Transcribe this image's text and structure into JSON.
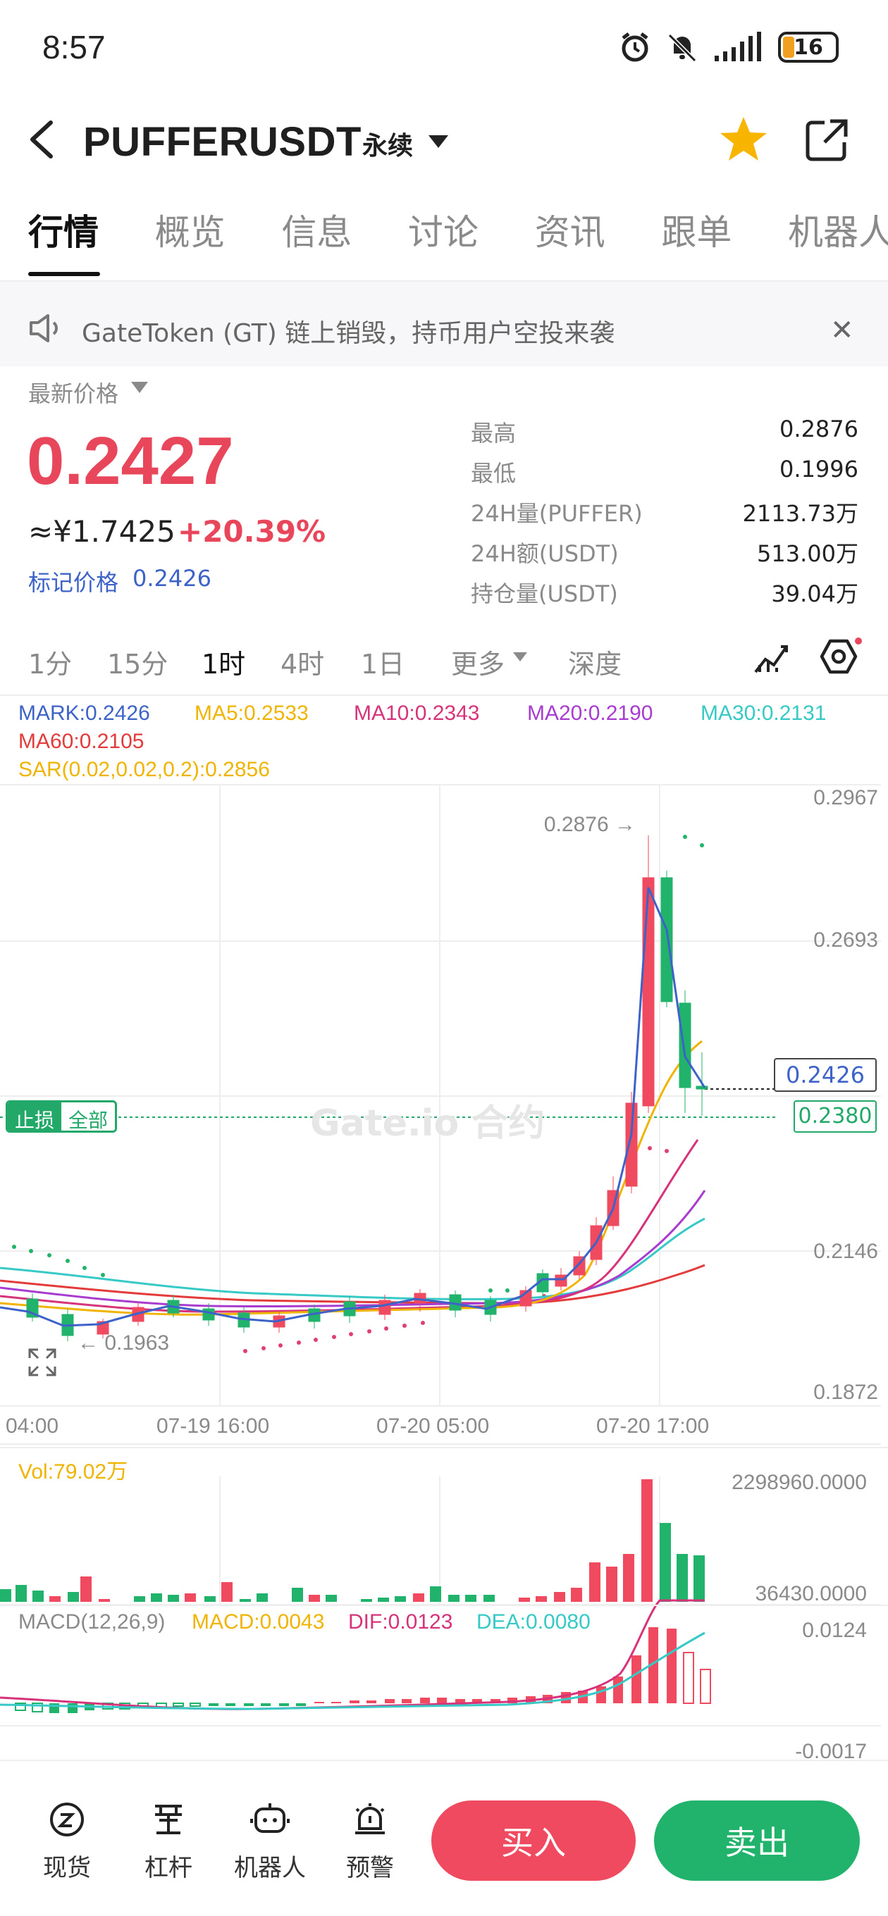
{
  "status": {
    "time": "8:57",
    "battery": "16"
  },
  "header": {
    "pair": "PUFFERUSDT",
    "contract_type": "永续"
  },
  "tabs": [
    "行情",
    "概览",
    "信息",
    "讨论",
    "资讯",
    "跟单",
    "机器人"
  ],
  "announcement": {
    "text": "GateToken (GT) 链上销毁，持币用户空投来袭"
  },
  "price": {
    "label": "最新价格",
    "last": "0.2427",
    "cny": "≈¥1.7425",
    "change": "+20.39%",
    "mark_label": "标记价格",
    "mark_value": "0.2426"
  },
  "stats": [
    {
      "label": "最高",
      "value": "0.2876"
    },
    {
      "label": "最低",
      "value": "0.1996"
    },
    {
      "label": "24H量(PUFFER)",
      "value": "2113.73万"
    },
    {
      "label": "24H额(USDT)",
      "value": "513.00万"
    },
    {
      "label": "持仓量(USDT)",
      "value": "39.04万"
    }
  ],
  "intervals": [
    "1分",
    "15分",
    "1时",
    "4时",
    "1日",
    "更多",
    "深度"
  ],
  "indicators": {
    "mark": "MARK:0.2426",
    "ma5": "MA5:0.2533",
    "ma10": "MA10:0.2343",
    "ma20": "MA20:0.2190",
    "ma30": "MA30:0.2131",
    "ma60": "MA60:0.2105",
    "sar": "SAR(0.02,0.02,0.2):0.2856"
  },
  "colors": {
    "up": "#ef4a5f",
    "down": "#21b36b",
    "mark": "#3d63c8",
    "ma5": "#f0b400",
    "ma10": "#d6337a",
    "ma20": "#a83cd0",
    "ma30": "#36c9c6",
    "ma60": "#e33b3b",
    "sar": "#e04070"
  },
  "chart": {
    "y_ticks": [
      "0.2967",
      "0.2693",
      "0.2146",
      "0.1872"
    ],
    "x_ticks": [
      "04:00",
      "07-19 16:00",
      "07-20 05:00",
      "07-20 17:00"
    ],
    "high_marker": "0.2876 →",
    "low_marker": "← 0.1963",
    "stop_loss": "止损",
    "stop_all": "全部",
    "mark_box": "0.2426",
    "last_box": "0.2380",
    "watermark": "Gate.io 合约"
  },
  "volume": {
    "label": "Vol:79.02万",
    "max": "2298960.0000",
    "min": "36430.0000"
  },
  "macd": {
    "label": "MACD(12,26,9)",
    "macd": "MACD:0.0043",
    "dif": "DIF:0.0123",
    "dea": "DEA:0.0080",
    "max": "0.0124",
    "min": "-0.0017"
  },
  "bottom_nav": [
    "现货",
    "杠杆",
    "机器人",
    "预警"
  ],
  "actions": {
    "buy": "买入",
    "sell": "卖出"
  }
}
